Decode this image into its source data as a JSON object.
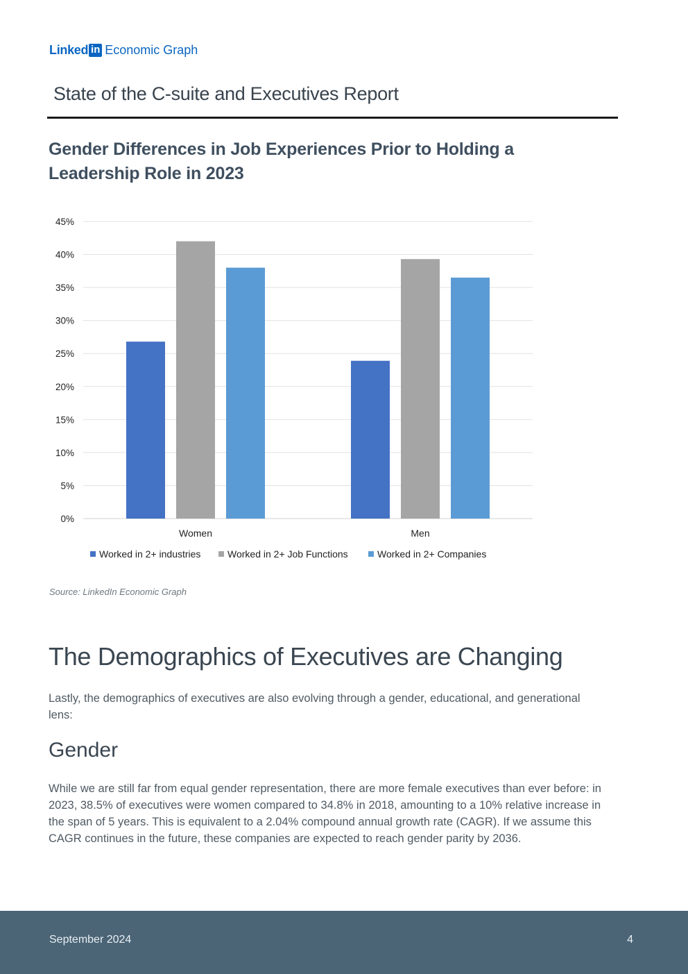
{
  "header": {
    "brand_linked": "Linked",
    "brand_in": "in",
    "brand_product": "Economic Graph",
    "report_title": "State of the C-suite and Executives Report"
  },
  "chart_title": "Gender Differences in Job Experiences Prior to Holding a Leadership Role in 2023",
  "chart_data": {
    "type": "bar",
    "categories": [
      "Women",
      "Men"
    ],
    "series": [
      {
        "name": "Worked in 2+ industries",
        "values": [
          26.8,
          23.9
        ],
        "color": "#4472c4"
      },
      {
        "name": "Worked in 2+ Job Functions",
        "values": [
          42.0,
          39.3
        ],
        "color": "#a5a5a5"
      },
      {
        "name": "Worked in 2+ Companies",
        "values": [
          38.0,
          36.5
        ],
        "color": "#5b9bd5"
      }
    ],
    "y_ticks": [
      "0%",
      "5%",
      "10%",
      "15%",
      "20%",
      "25%",
      "30%",
      "35%",
      "40%",
      "45%"
    ],
    "ylim": [
      0,
      45
    ],
    "grid": true,
    "legend_position": "bottom"
  },
  "source": "Source: LinkedIn Economic Graph",
  "section": {
    "heading": "The Demographics of Executives are Changing",
    "intro": "Lastly, the demographics of executives are also evolving through a gender, educational, and generational lens:"
  },
  "gender": {
    "heading": "Gender",
    "body": "While we are still far from equal gender representation, there are more female executives than ever before: in 2023, 38.5% of executives were women compared to 34.8% in 2018, amounting to a 10% relative increase in the span of 5 years. This is equivalent to a 2.04% compound annual growth rate (CAGR). If we assume this CAGR continues in the future, these companies are expected to reach gender parity by 2036."
  },
  "footer": {
    "date": "September 2024",
    "page_number": "4"
  }
}
